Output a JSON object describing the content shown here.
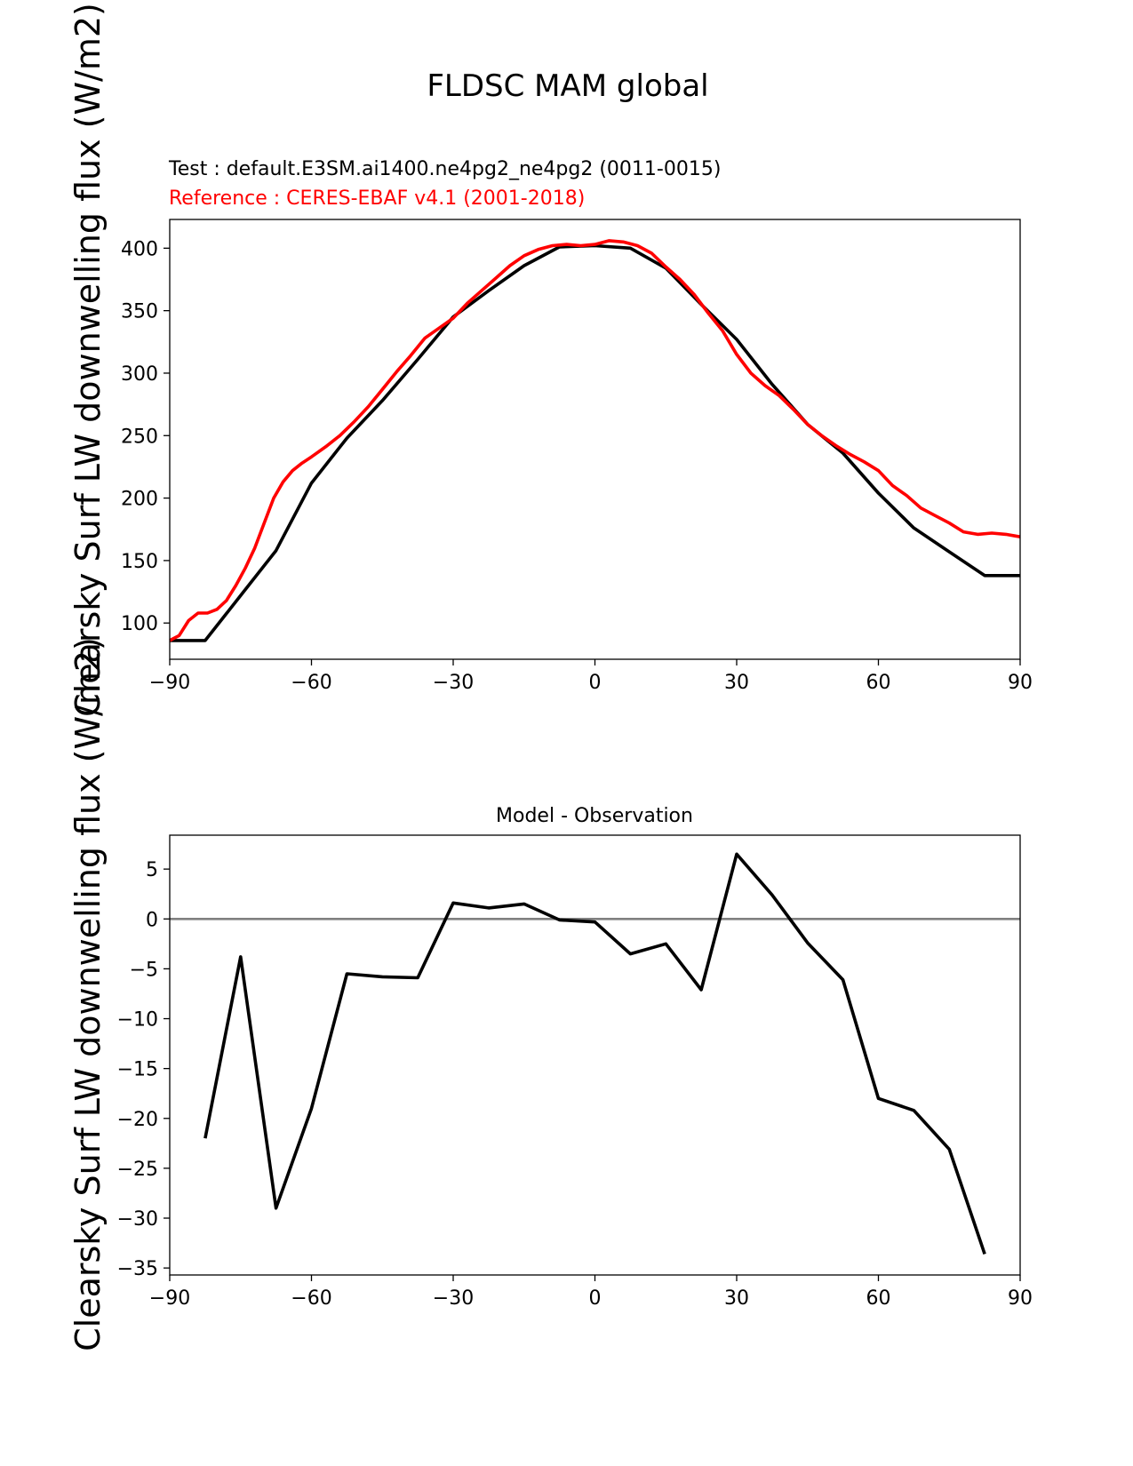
{
  "figure": {
    "title": "FLDSC MAM global",
    "test_label": "Test : default.E3SM.ai1400.ne4pg2_ne4pg2 (0011-0015)",
    "reference_label": "Reference : CERES-EBAF v4.1 (2001-2018)"
  },
  "colors": {
    "test": "#000000",
    "reference": "#ff0000",
    "zero_line": "#808080"
  },
  "chart_data": [
    {
      "type": "line",
      "title": "",
      "ylabel": "Clearsky Surf LW downwelling flux (W/m2)",
      "xlim": [
        -90,
        90
      ],
      "ylim": [
        71,
        423
      ],
      "xticks": [
        -90,
        -60,
        -30,
        0,
        30,
        60,
        90
      ],
      "xtick_labels": [
        "−90",
        "−60",
        "−30",
        "0",
        "30",
        "60",
        "90"
      ],
      "yticks": [
        100,
        150,
        200,
        250,
        300,
        350,
        400
      ],
      "ytick_labels": [
        "100",
        "150",
        "200",
        "250",
        "300",
        "350",
        "400"
      ],
      "grid": false,
      "series": [
        {
          "role": "test",
          "x": [
            -90,
            -82.5,
            -75,
            -67.5,
            -60,
            -52.5,
            -45,
            -37.5,
            -30,
            -22.5,
            -15,
            -7.5,
            0,
            7.5,
            15,
            22.5,
            30,
            37.5,
            45,
            52.5,
            60,
            67.5,
            75,
            82.5,
            90
          ],
          "y": [
            86,
            86,
            122,
            158,
            212,
            248,
            278,
            311,
            345,
            366,
            386,
            401,
            402,
            400,
            384,
            355,
            327,
            291,
            259,
            236,
            204,
            176,
            157,
            138,
            138
          ]
        },
        {
          "role": "reference",
          "x": [
            -90,
            -88,
            -86,
            -84,
            -82,
            -80,
            -78,
            -76,
            -74,
            -72,
            -70,
            -68,
            -66,
            -64,
            -62,
            -60,
            -57,
            -54,
            -51,
            -48,
            -45,
            -42,
            -39,
            -36,
            -33,
            -30,
            -27,
            -24,
            -21,
            -18,
            -15,
            -12,
            -9,
            -6,
            -3,
            0,
            3,
            6,
            9,
            12,
            15,
            18,
            21,
            24,
            27,
            30,
            33,
            36,
            39,
            42,
            45,
            48,
            51,
            54,
            57,
            60,
            63,
            66,
            69,
            72,
            75,
            78,
            81,
            84,
            87,
            90
          ],
          "y": [
            86,
            90,
            102,
            108,
            108,
            111,
            118,
            130,
            144,
            160,
            180,
            200,
            213,
            222,
            228,
            233,
            241,
            250,
            261,
            273,
            287,
            301,
            314,
            328,
            336,
            344,
            356,
            366,
            376,
            386,
            394,
            399,
            402,
            403,
            402,
            403,
            406,
            405,
            402,
            396,
            385,
            375,
            363,
            348,
            334,
            315,
            300,
            290,
            282,
            271,
            259,
            250,
            242,
            235,
            229,
            222,
            210,
            202,
            192,
            186,
            180,
            173,
            171,
            172,
            171,
            169
          ]
        }
      ]
    },
    {
      "type": "line",
      "title": "Model - Observation",
      "ylabel": "Clearsky Surf LW downwelling flux (W/m2)",
      "xlim": [
        -90,
        90
      ],
      "ylim": [
        -35.7,
        8.4
      ],
      "xticks": [
        -90,
        -60,
        -30,
        0,
        30,
        60,
        90
      ],
      "xtick_labels": [
        "−90",
        "−60",
        "−30",
        "0",
        "30",
        "60",
        "90"
      ],
      "yticks": [
        5,
        0,
        -5,
        -10,
        -15,
        -20,
        -25,
        -30,
        -35
      ],
      "ytick_labels": [
        "5",
        "0",
        "−5",
        "−10",
        "−15",
        "−20",
        "−25",
        "−30",
        "−35"
      ],
      "grid": false,
      "zero_line": 0,
      "series": [
        {
          "role": "difference",
          "x": [
            -82.5,
            -75,
            -67.5,
            -60,
            -52.5,
            -45,
            -37.5,
            -30,
            -22.5,
            -15,
            -7.5,
            0,
            7.5,
            15,
            22.5,
            30,
            37.5,
            45,
            52.5,
            60,
            67.5,
            75,
            82.5
          ],
          "y": [
            -22,
            -3.8,
            -29,
            -19,
            -5.5,
            -5.8,
            -5.9,
            1.6,
            1.1,
            1.5,
            -0.1,
            -0.3,
            -3.5,
            -2.5,
            -7.1,
            6.5,
            2.4,
            -2.4,
            -6.1,
            -18,
            -19.2,
            -23.1,
            -33.6
          ]
        }
      ]
    }
  ]
}
